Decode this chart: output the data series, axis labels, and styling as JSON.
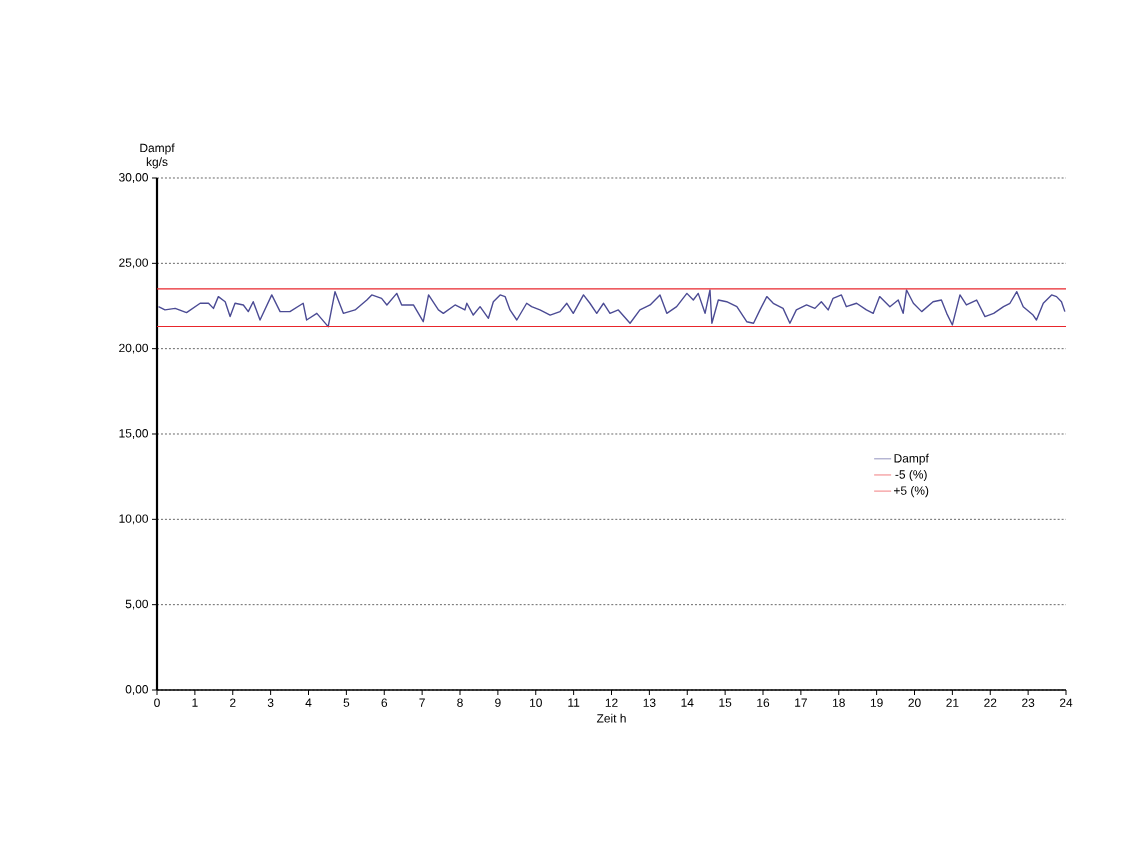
{
  "chart_data": {
    "type": "line",
    "xlabel": "Zeit h",
    "ylabel": "Dampf kg/s",
    "xlim": [
      0,
      24
    ],
    "xticks": [
      0,
      1,
      2,
      3,
      4,
      5,
      6,
      7,
      8,
      9,
      10,
      11,
      12,
      13,
      14,
      15,
      16,
      17,
      18,
      19,
      20,
      21,
      22,
      23,
      24
    ],
    "ylim": [
      0,
      30
    ],
    "yticks": [
      {
        "value": 0,
        "label": "0,00"
      },
      {
        "value": 5,
        "label": "5,00"
      },
      {
        "value": 10,
        "label": "10,00"
      },
      {
        "value": 15,
        "label": "15,00"
      },
      {
        "value": 20,
        "label": "20,00"
      },
      {
        "value": 25,
        "label": "25,00"
      },
      {
        "value": 30,
        "label": "30,00"
      }
    ],
    "grid": "y",
    "legend": "right",
    "marker": "none",
    "line_style": "solid",
    "series": [
      {
        "name": "Dampf",
        "color": "#4b4b94",
        "x": [
          0.04,
          0.21,
          0.48,
          0.78,
          1.14,
          1.36,
          1.49,
          1.62,
          1.8,
          1.93,
          2.06,
          2.28,
          2.41,
          2.54,
          2.72,
          3.03,
          3.25,
          3.51,
          3.86,
          3.95,
          4.22,
          4.52,
          4.7,
          4.92,
          5.23,
          5.54,
          5.67,
          5.93,
          6.07,
          6.33,
          6.46,
          6.77,
          7.03,
          7.17,
          7.43,
          7.56,
          7.87,
          8.13,
          8.18,
          8.35,
          8.53,
          8.75,
          8.88,
          9.06,
          9.19,
          9.32,
          9.5,
          9.76,
          9.89,
          10.11,
          10.38,
          10.64,
          10.82,
          10.99,
          11.26,
          11.43,
          11.61,
          11.79,
          11.96,
          12.18,
          12.49,
          12.75,
          13.02,
          13.28,
          13.46,
          13.72,
          13.99,
          14.16,
          14.29,
          14.47,
          14.6,
          14.65,
          14.82,
          15.04,
          15.31,
          15.57,
          15.75,
          15.92,
          16.1,
          16.27,
          16.53,
          16.71,
          16.88,
          17.15,
          17.37,
          17.54,
          17.72,
          17.85,
          18.07,
          18.2,
          18.47,
          18.73,
          18.91,
          19.08,
          19.35,
          19.57,
          19.7,
          19.79,
          19.97,
          20.19,
          20.49,
          20.71,
          20.85,
          21.0,
          21.2,
          21.37,
          21.64,
          21.86,
          22.09,
          22.35,
          22.52,
          22.7,
          22.87,
          23.13,
          23.22,
          23.4,
          23.62,
          23.75,
          23.88,
          23.97
        ],
        "values": [
          22.46,
          22.27,
          22.36,
          22.11,
          22.66,
          22.66,
          22.36,
          23.05,
          22.75,
          21.88,
          22.66,
          22.56,
          22.17,
          22.75,
          21.68,
          23.15,
          22.17,
          22.17,
          22.66,
          21.68,
          22.07,
          21.29,
          23.34,
          22.07,
          22.27,
          22.85,
          23.15,
          22.95,
          22.56,
          23.24,
          22.56,
          22.56,
          21.58,
          23.15,
          22.27,
          22.07,
          22.56,
          22.27,
          22.66,
          21.97,
          22.46,
          21.78,
          22.75,
          23.15,
          23.05,
          22.27,
          21.68,
          22.66,
          22.46,
          22.27,
          21.97,
          22.17,
          22.66,
          22.07,
          23.15,
          22.66,
          22.07,
          22.66,
          22.07,
          22.27,
          21.49,
          22.27,
          22.56,
          23.15,
          22.07,
          22.46,
          23.24,
          22.85,
          23.24,
          22.07,
          23.44,
          21.49,
          22.85,
          22.75,
          22.46,
          21.58,
          21.49,
          22.27,
          23.05,
          22.66,
          22.36,
          21.49,
          22.27,
          22.56,
          22.36,
          22.75,
          22.27,
          22.95,
          23.15,
          22.46,
          22.66,
          22.27,
          22.07,
          23.05,
          22.46,
          22.85,
          22.07,
          23.44,
          22.66,
          22.17,
          22.75,
          22.85,
          22.07,
          21.39,
          23.15,
          22.56,
          22.85,
          21.88,
          22.07,
          22.46,
          22.66,
          23.34,
          22.46,
          21.97,
          21.68,
          22.66,
          23.15,
          23.05,
          22.75,
          22.17
        ]
      },
      {
        "name": "-5 (%)",
        "color": "#e8262c",
        "x": [
          0,
          24
        ],
        "values": [
          21.3,
          21.3
        ]
      },
      {
        "name": "+5 (%)",
        "color": "#e8262c",
        "x": [
          0,
          24
        ],
        "values": [
          23.5,
          23.5
        ]
      }
    ]
  }
}
